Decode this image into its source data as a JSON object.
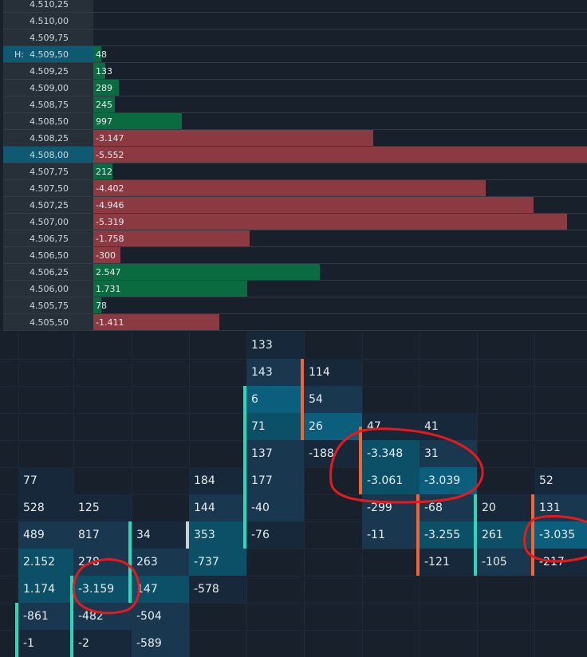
{
  "colors": {
    "background": "#17202b",
    "positive": "#0b6b40",
    "negative": "#8b3a42",
    "highlight": "#0f5a72",
    "marker_teal": "#2fd7b6",
    "marker_orange": "#f06533",
    "annotation": "#e8191a"
  },
  "ladder": {
    "high_marker": "H:",
    "rows": [
      {
        "price": "4.510,25",
        "value": "",
        "delta": 0
      },
      {
        "price": "4.510,00",
        "value": "",
        "delta": 0
      },
      {
        "price": "4.509,75",
        "value": "",
        "delta": 0
      },
      {
        "price": "4.509,50",
        "value": "48",
        "delta": 48,
        "highlight": true,
        "high": true
      },
      {
        "price": "4.509,25",
        "value": "133",
        "delta": 133
      },
      {
        "price": "4.509,00",
        "value": "289",
        "delta": 289
      },
      {
        "price": "4.508,75",
        "value": "245",
        "delta": 245
      },
      {
        "price": "4.508,50",
        "value": "997",
        "delta": 997
      },
      {
        "price": "4.508,25",
        "value": "-3.147",
        "delta": -3147
      },
      {
        "price": "4.508,00",
        "value": "-5.552",
        "delta": -5552,
        "highlight": true
      },
      {
        "price": "4.507,75",
        "value": "212",
        "delta": 212
      },
      {
        "price": "4.507,50",
        "value": "-4.402",
        "delta": -4402
      },
      {
        "price": "4.507,25",
        "value": "-4.946",
        "delta": -4946
      },
      {
        "price": "4.507,00",
        "value": "-5.319",
        "delta": -5319
      },
      {
        "price": "4.506,75",
        "value": "-1.758",
        "delta": -1758
      },
      {
        "price": "4.506,50",
        "value": "-300",
        "delta": -300
      },
      {
        "price": "4.506,25",
        "value": "2.547",
        "delta": 2547
      },
      {
        "price": "4.506,00",
        "value": "1.731",
        "delta": 1731
      },
      {
        "price": "4.505,75",
        "value": "78",
        "delta": 78
      },
      {
        "price": "4.505,50",
        "value": "-1.411",
        "delta": -1411
      }
    ]
  },
  "footprint": {
    "columns": [
      {
        "cells": [
          {
            "row": 5,
            "text": "77",
            "shade": 0
          },
          {
            "row": 6,
            "text": "528",
            "shade": 0
          },
          {
            "row": 7,
            "text": "489",
            "shade": 1
          },
          {
            "row": 8,
            "text": "2.152",
            "shade": 2
          },
          {
            "row": 9,
            "text": "1.174",
            "shade": 2
          },
          {
            "row": 10,
            "text": "-861",
            "shade": 1
          },
          {
            "row": 11,
            "text": "-1",
            "shade": 0
          }
        ],
        "markers": [
          {
            "color": "teal",
            "from": 10.0,
            "to": 12.0
          }
        ]
      },
      {
        "cells": [
          {
            "row": 6,
            "text": "125",
            "shade": 0
          },
          {
            "row": 7,
            "text": "817",
            "shade": 1
          },
          {
            "row": 8,
            "text": "278",
            "shade": 1
          },
          {
            "row": 9,
            "text": "-3.159",
            "shade": 2
          },
          {
            "row": 10,
            "text": "-482",
            "shade": 1
          },
          {
            "row": 11,
            "text": "-2",
            "shade": 0
          }
        ],
        "markers": [
          {
            "color": "teal",
            "from": 9.0,
            "to": 12.0
          }
        ]
      },
      {
        "cells": [
          {
            "row": 7,
            "text": "34",
            "shade": 0
          },
          {
            "row": 8,
            "text": "263",
            "shade": 1
          },
          {
            "row": 9,
            "text": "147",
            "shade": 2
          },
          {
            "row": 10,
            "text": "-504",
            "shade": 1
          },
          {
            "row": 11,
            "text": "-589",
            "shade": 1
          }
        ],
        "markers": [
          {
            "color": "teal",
            "from": 7.0,
            "to": 10.0
          }
        ]
      },
      {
        "cells": [
          {
            "row": 5,
            "text": "184",
            "shade": 0
          },
          {
            "row": 6,
            "text": "144",
            "shade": 1
          },
          {
            "row": 7,
            "text": "353",
            "shade": 2
          },
          {
            "row": 8,
            "text": "-737",
            "shade": 2
          },
          {
            "row": 9,
            "text": "-578",
            "shade": 0
          }
        ],
        "markers": [
          {
            "color": "white",
            "from": 7.0,
            "to": 8.0
          }
        ]
      },
      {
        "cells": [
          {
            "row": 0,
            "text": "133",
            "shade": 0
          },
          {
            "row": 1,
            "text": "143",
            "shade": 1
          },
          {
            "row": 2,
            "text": "6",
            "shade": 3
          },
          {
            "row": 3,
            "text": "71",
            "shade": 2
          },
          {
            "row": 4,
            "text": "137",
            "shade": 1
          },
          {
            "row": 5,
            "text": "177",
            "shade": 1
          },
          {
            "row": 6,
            "text": "-40",
            "shade": 1
          },
          {
            "row": 7,
            "text": "-76",
            "shade": 0
          }
        ],
        "markers": [
          {
            "color": "teal",
            "from": 2.0,
            "to": 8.0
          }
        ]
      },
      {
        "cells": [
          {
            "row": 1,
            "text": "114",
            "shade": 0
          },
          {
            "row": 2,
            "text": "54",
            "shade": 1
          },
          {
            "row": 3,
            "text": "26",
            "shade": 3
          },
          {
            "row": 4,
            "text": "-188",
            "shade": 0
          }
        ],
        "markers": [
          {
            "color": "orange",
            "from": 1.0,
            "to": 4.0
          }
        ]
      },
      {
        "cells": [
          {
            "row": 3,
            "text": "47",
            "shade": 0
          },
          {
            "row": 4,
            "text": "-3.348",
            "shade": 2
          },
          {
            "row": 5,
            "text": "-3.061",
            "shade": 2
          },
          {
            "row": 6,
            "text": "-299",
            "shade": 1
          },
          {
            "row": 7,
            "text": "-11",
            "shade": 1
          }
        ],
        "markers": [
          {
            "color": "orange",
            "from": 3.5,
            "to": 6.0
          }
        ]
      },
      {
        "cells": [
          {
            "row": 3,
            "text": "41",
            "shade": 0
          },
          {
            "row": 4,
            "text": "31",
            "shade": 1
          },
          {
            "row": 5,
            "text": "-3.039",
            "shade": 3
          },
          {
            "row": 6,
            "text": "-68",
            "shade": 1
          },
          {
            "row": 7,
            "text": "-3.255",
            "shade": 2
          },
          {
            "row": 8,
            "text": "-121",
            "shade": 0
          }
        ],
        "markers": [
          {
            "color": "orange",
            "from": 6.0,
            "to": 9.0
          }
        ]
      },
      {
        "cells": [
          {
            "row": 6,
            "text": "20",
            "shade": 0
          },
          {
            "row": 7,
            "text": "261",
            "shade": 2
          },
          {
            "row": 8,
            "text": "-105",
            "shade": 1
          }
        ],
        "markers": [
          {
            "color": "teal",
            "from": 6.0,
            "to": 9.0
          }
        ]
      },
      {
        "cells": [
          {
            "row": 5,
            "text": "52",
            "shade": 0
          },
          {
            "row": 6,
            "text": "131",
            "shade": 1
          },
          {
            "row": 7,
            "text": "-3.035",
            "shade": 3
          },
          {
            "row": 8,
            "text": "-217",
            "shade": 0
          }
        ],
        "markers": [
          {
            "color": "orange",
            "from": 6.0,
            "to": 9.0
          }
        ]
      }
    ]
  }
}
